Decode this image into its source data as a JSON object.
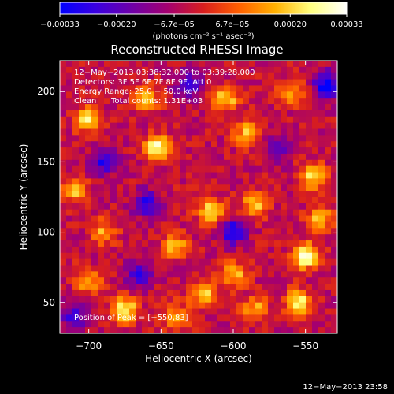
{
  "chart_data": {
    "type": "heatmap",
    "title": "Reconstructed RHESSI Image",
    "xlabel": "Heliocentric X (arcsec)",
    "ylabel": "Heliocentric Y (arcsec)",
    "xlim": [
      -720,
      -528
    ],
    "ylim": [
      28,
      222
    ],
    "x_ticks": [
      -700,
      -650,
      -600,
      -550
    ],
    "y_ticks": [
      50,
      100,
      150,
      200
    ],
    "x_tick_labels": [
      "−700",
      "−650",
      "−600",
      "−550"
    ],
    "y_tick_labels": [
      "50",
      "100",
      "150",
      "200"
    ],
    "colorbar": {
      "range": [
        -0.00033,
        0.00033
      ],
      "tick_values": [
        -0.00033,
        -0.0002,
        -6.7e-05,
        6.7e-05,
        0.0002,
        0.00033
      ],
      "tick_labels": [
        "−0.00033",
        "−0.00020",
        "−6.7e−05",
        "6.7e−05",
        "0.00020",
        "0.00033"
      ],
      "colors": [
        "#0000ff",
        "#3a00e0",
        "#6e00a8",
        "#a40070",
        "#d81e1e",
        "#ff6000",
        "#ffb000",
        "#ffff80",
        "#ffffff"
      ],
      "unit_label": "(photons cm⁻² s⁻¹ asec⁻²)"
    },
    "annotations": {
      "time_range": "12−May−2013 03:38:32.000 to 03:39:28.000",
      "detectors": "Detectors: 3F 5F 6F 7F 8F 9F, Att 0",
      "energy_range": "Energy Range: 25.0 − 50.0 keV",
      "clean": "Clean",
      "total_counts": "Total counts: 1.31E+03",
      "peak_position": "Position of Peak = [−550,83]"
    },
    "hotspots": [
      {
        "x": -652,
        "y": 160,
        "v": 1.0
      },
      {
        "x": -700,
        "y": 180,
        "v": 0.85
      },
      {
        "x": -675,
        "y": 45,
        "v": 0.9
      },
      {
        "x": -660,
        "y": 195,
        "v": 0.7
      },
      {
        "x": -605,
        "y": 195,
        "v": 0.75
      },
      {
        "x": -590,
        "y": 170,
        "v": 0.7
      },
      {
        "x": -615,
        "y": 115,
        "v": 0.8
      },
      {
        "x": -585,
        "y": 120,
        "v": 0.7
      },
      {
        "x": -550,
        "y": 83,
        "v": 1.0
      },
      {
        "x": -545,
        "y": 140,
        "v": 0.85
      },
      {
        "x": -540,
        "y": 110,
        "v": 0.7
      },
      {
        "x": -555,
        "y": 50,
        "v": 0.85
      },
      {
        "x": -620,
        "y": 55,
        "v": 0.75
      },
      {
        "x": -600,
        "y": 70,
        "v": 0.7
      },
      {
        "x": -640,
        "y": 90,
        "v": 0.65
      },
      {
        "x": -710,
        "y": 130,
        "v": 0.65
      },
      {
        "x": -690,
        "y": 100,
        "v": 0.6
      },
      {
        "x": -700,
        "y": 65,
        "v": 0.6
      },
      {
        "x": -560,
        "y": 200,
        "v": 0.55
      },
      {
        "x": -640,
        "y": 40,
        "v": 0.6
      },
      {
        "x": -585,
        "y": 45,
        "v": 0.6
      }
    ],
    "negative_spots": [
      {
        "x": -535,
        "y": 205,
        "v": -0.95
      },
      {
        "x": -690,
        "y": 150,
        "v": -0.7
      },
      {
        "x": -660,
        "y": 120,
        "v": -0.75
      },
      {
        "x": -600,
        "y": 100,
        "v": -0.8
      },
      {
        "x": -665,
        "y": 70,
        "v": -0.7
      },
      {
        "x": -710,
        "y": 40,
        "v": -0.6
      },
      {
        "x": -630,
        "y": 205,
        "v": -0.65
      },
      {
        "x": -570,
        "y": 160,
        "v": -0.55
      }
    ]
  },
  "footer": {
    "timestamp": "12−May−2013 23:58"
  }
}
